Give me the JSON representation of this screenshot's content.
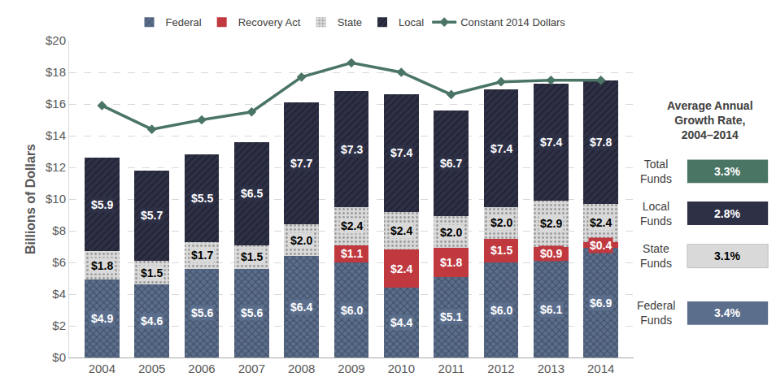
{
  "chart_data": {
    "type": "bar",
    "stacked": true,
    "data_labels": true,
    "grid": true,
    "legend": "top",
    "y_label": "Billions of Dollars",
    "categories": [
      "2004",
      "2005",
      "2006",
      "2007",
      "2008",
      "2009",
      "2010",
      "2011",
      "2012",
      "2013",
      "2014"
    ],
    "ylim": [
      0,
      20
    ],
    "yticks": [
      {
        "value": 0,
        "label": "$0"
      },
      {
        "value": 2,
        "label": "$2"
      },
      {
        "value": 4,
        "label": "$4"
      },
      {
        "value": 6,
        "label": "$6"
      },
      {
        "value": 8,
        "label": "$8"
      },
      {
        "value": 10,
        "label": "$10"
      },
      {
        "value": 12,
        "label": "$12"
      },
      {
        "value": 14,
        "label": "$14"
      },
      {
        "value": 16,
        "label": "$16"
      },
      {
        "value": 18,
        "label": "$18"
      },
      {
        "value": 20,
        "label": "$20"
      }
    ],
    "series": [
      {
        "name": "Federal",
        "type": "bar",
        "color": "#5b6e8c",
        "values": [
          4.9,
          4.6,
          5.6,
          5.6,
          6.4,
          6.0,
          4.4,
          5.1,
          6.0,
          6.1,
          6.9
        ],
        "value_labels": [
          "$4.9",
          "$4.6",
          "$5.6",
          "$5.6",
          "$6.4",
          "$6.0",
          "$4.4",
          "$5.1",
          "$6.0",
          "$6.1",
          "$6.9"
        ]
      },
      {
        "name": "Recovery Act",
        "type": "bar",
        "color": "#c0393f",
        "values": [
          null,
          null,
          null,
          null,
          null,
          1.1,
          2.4,
          1.8,
          1.5,
          0.9,
          0.4
        ],
        "value_labels": [
          null,
          null,
          null,
          null,
          null,
          "$1.1",
          "$2.4",
          "$1.8",
          "$1.5",
          "$0.9",
          "$0.4"
        ]
      },
      {
        "name": "State",
        "type": "bar",
        "color": "#d9d9d9",
        "values": [
          1.8,
          1.5,
          1.7,
          1.5,
          2.0,
          2.4,
          2.4,
          2.0,
          2.0,
          2.9,
          2.4
        ],
        "value_labels": [
          "$1.8",
          "$1.5",
          "$1.7",
          "$1.5",
          "$2.0",
          "$2.4",
          "$2.4",
          "$2.0",
          "$2.0",
          "$2.9",
          "$2.4"
        ]
      },
      {
        "name": "Local",
        "type": "bar",
        "color": "#2e3046",
        "values": [
          5.9,
          5.7,
          5.5,
          6.5,
          7.7,
          7.3,
          7.4,
          6.7,
          7.4,
          7.4,
          7.8
        ],
        "value_labels": [
          "$5.9",
          "$5.7",
          "$5.5",
          "$6.5",
          "$7.7",
          "$7.3",
          "$7.4",
          "$6.7",
          "$7.4",
          "$7.4",
          "$7.8"
        ]
      },
      {
        "name": "Constant 2014 Dollars",
        "type": "line",
        "color": "#4a7565",
        "marker": "diamond",
        "values": [
          15.9,
          14.4,
          15.0,
          15.5,
          17.7,
          18.6,
          18.0,
          16.6,
          17.4,
          17.5,
          17.5
        ]
      }
    ],
    "growth_panel": {
      "title": [
        "Average Annual",
        "Growth Rate,",
        "2004–2014"
      ],
      "items": [
        {
          "name": "Total Funds",
          "value": 3.3,
          "label": "3.3%",
          "color": "#4a7565"
        },
        {
          "name": "Local Funds",
          "value": 2.8,
          "label": "2.8%",
          "color": "#2e3046"
        },
        {
          "name": "State Funds",
          "value": 3.1,
          "label": "3.1%",
          "color": "#d9d9d9"
        },
        {
          "name": "Federal Funds",
          "value": 3.4,
          "label": "3.4%",
          "color": "#5b6e8c"
        }
      ]
    }
  }
}
